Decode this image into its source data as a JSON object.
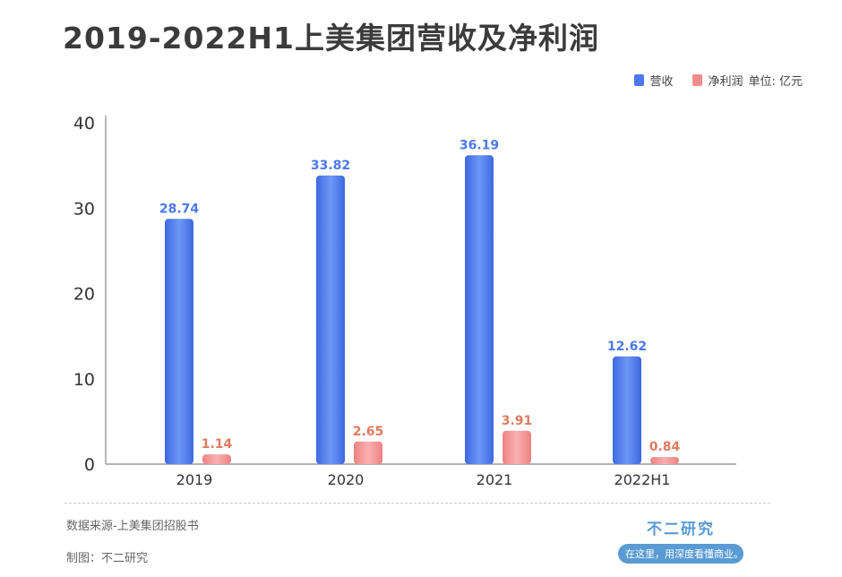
{
  "title": "2019-2022H1上美集团营收及净利润",
  "legend": {
    "revenue": "营收",
    "net_profit": "净利润",
    "unit": "单位: 亿元"
  },
  "footer": {
    "source": "数据来源-上美集团招股书",
    "maker": "制图：不二研究",
    "brand_name": "不二研究",
    "brand_slogan": "在这里，用深度看懂商业。"
  },
  "colors": {
    "revenue": "#4b78ec",
    "net_profit": "#f08c8c",
    "revenue_label": "#4b78ec",
    "net_profit_label": "#e07a5f"
  },
  "chart_data": {
    "type": "bar",
    "categories": [
      "2019",
      "2020",
      "2021",
      "2022H1"
    ],
    "series": [
      {
        "name": "营收",
        "values": [
          28.74,
          33.82,
          36.19,
          12.62
        ]
      },
      {
        "name": "净利润",
        "values": [
          1.14,
          2.65,
          3.91,
          0.84
        ]
      }
    ],
    "ylim": [
      0,
      40
    ],
    "yticks": [
      0,
      10,
      20,
      30,
      40
    ],
    "legend_position": "top-right",
    "grid": false
  }
}
